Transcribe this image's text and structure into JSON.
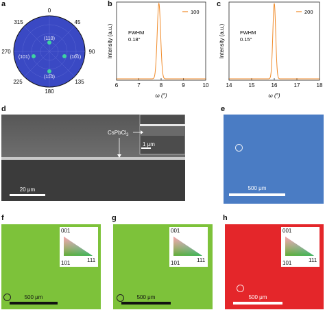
{
  "panels": {
    "a": {
      "label": "a"
    },
    "b": {
      "label": "b"
    },
    "c": {
      "label": "c"
    },
    "d": {
      "label": "d"
    },
    "e": {
      "label": "e"
    },
    "f": {
      "label": "f"
    },
    "g": {
      "label": "g"
    },
    "h": {
      "label": "h"
    }
  },
  "pole_figure": {
    "angles": [
      "0",
      "45",
      "90",
      "135",
      "180",
      "225",
      "270",
      "315"
    ],
    "spots": [
      "(110)",
      "(101)",
      "(10̅1)",
      "(11̅0)"
    ],
    "disk_color": "#3a49c4",
    "spot_color": "#3ed3a0"
  },
  "micro_d": {
    "label_compound": "CsPbCl",
    "label_subscript": "3",
    "inset_scale": "1 μm",
    "main_scale": "20 μm"
  },
  "ebsd": {
    "e": {
      "color": "#4a7cc4",
      "scale": "500 μm"
    },
    "f": {
      "color": "#7dc23a",
      "scale": "500 μm"
    },
    "g": {
      "color": "#7dc23a",
      "scale": "500 μm"
    },
    "h": {
      "color": "#e4262a",
      "scale": "500 μm"
    },
    "ipf_labels": {
      "top": "001",
      "left": "101",
      "right": "111"
    }
  },
  "chart_data": [
    {
      "type": "line",
      "panel": "b",
      "ylabel": "Intensity (a.u.)",
      "xlabel": "ω (°)",
      "xlim": [
        6,
        10
      ],
      "xticks": [
        "6",
        "7",
        "8",
        "9",
        "10"
      ],
      "annotation": [
        "FWHM",
        "0.18°"
      ],
      "series": [
        {
          "name": "100",
          "color": "#f08a28",
          "peak_center": 7.9,
          "fwhm": 0.18
        }
      ]
    },
    {
      "type": "line",
      "panel": "c",
      "ylabel": "Intensity (a.u.)",
      "xlabel": "ω (°)",
      "xlim": [
        14,
        18
      ],
      "xticks": [
        "14",
        "15",
        "16",
        "17",
        "18"
      ],
      "annotation": [
        "FWHM",
        "0.15°"
      ],
      "series": [
        {
          "name": "200",
          "color": "#f08a28",
          "peak_center": 16.0,
          "fwhm": 0.15
        }
      ]
    }
  ]
}
